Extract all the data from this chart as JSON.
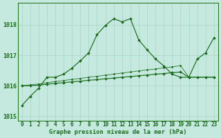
{
  "title": "Graphe pression niveau de la mer (hPa)",
  "bg_color": "#c5e8df",
  "line_color": "#1a6b1a",
  "grid_color": "#a8d5c5",
  "hours": [
    0,
    1,
    2,
    3,
    4,
    5,
    6,
    7,
    8,
    9,
    10,
    11,
    12,
    13,
    14,
    15,
    16,
    17,
    18,
    19,
    20,
    21,
    22,
    23
  ],
  "series1": [
    1015.35,
    1015.65,
    1015.92,
    1016.28,
    1016.28,
    1016.38,
    1016.58,
    1016.82,
    1017.08,
    1017.68,
    1017.98,
    1018.2,
    1018.1,
    1018.2,
    1017.5,
    1017.18,
    1016.88,
    1016.65,
    1016.38,
    1016.28,
    1016.28,
    1016.88,
    1017.08,
    1017.58
  ],
  "series2": [
    1016.0,
    1016.0,
    1016.02,
    1016.05,
    1016.08,
    1016.1,
    1016.13,
    1016.15,
    1016.18,
    1016.2,
    1016.23,
    1016.25,
    1016.28,
    1016.3,
    1016.33,
    1016.35,
    1016.38,
    1016.4,
    1016.43,
    1016.45,
    1016.28,
    1016.28,
    1016.28,
    1016.28
  ],
  "series3": [
    1016.0,
    1016.03,
    1016.06,
    1016.1,
    1016.14,
    1016.17,
    1016.21,
    1016.24,
    1016.28,
    1016.31,
    1016.35,
    1016.38,
    1016.42,
    1016.45,
    1016.49,
    1016.52,
    1016.55,
    1016.59,
    1016.62,
    1016.66,
    1016.28,
    1016.28,
    1016.28,
    1016.28
  ],
  "ylim": [
    1014.85,
    1018.72
  ],
  "yticks": [
    1015,
    1016,
    1017,
    1018
  ],
  "xlim": [
    -0.5,
    23.5
  ]
}
